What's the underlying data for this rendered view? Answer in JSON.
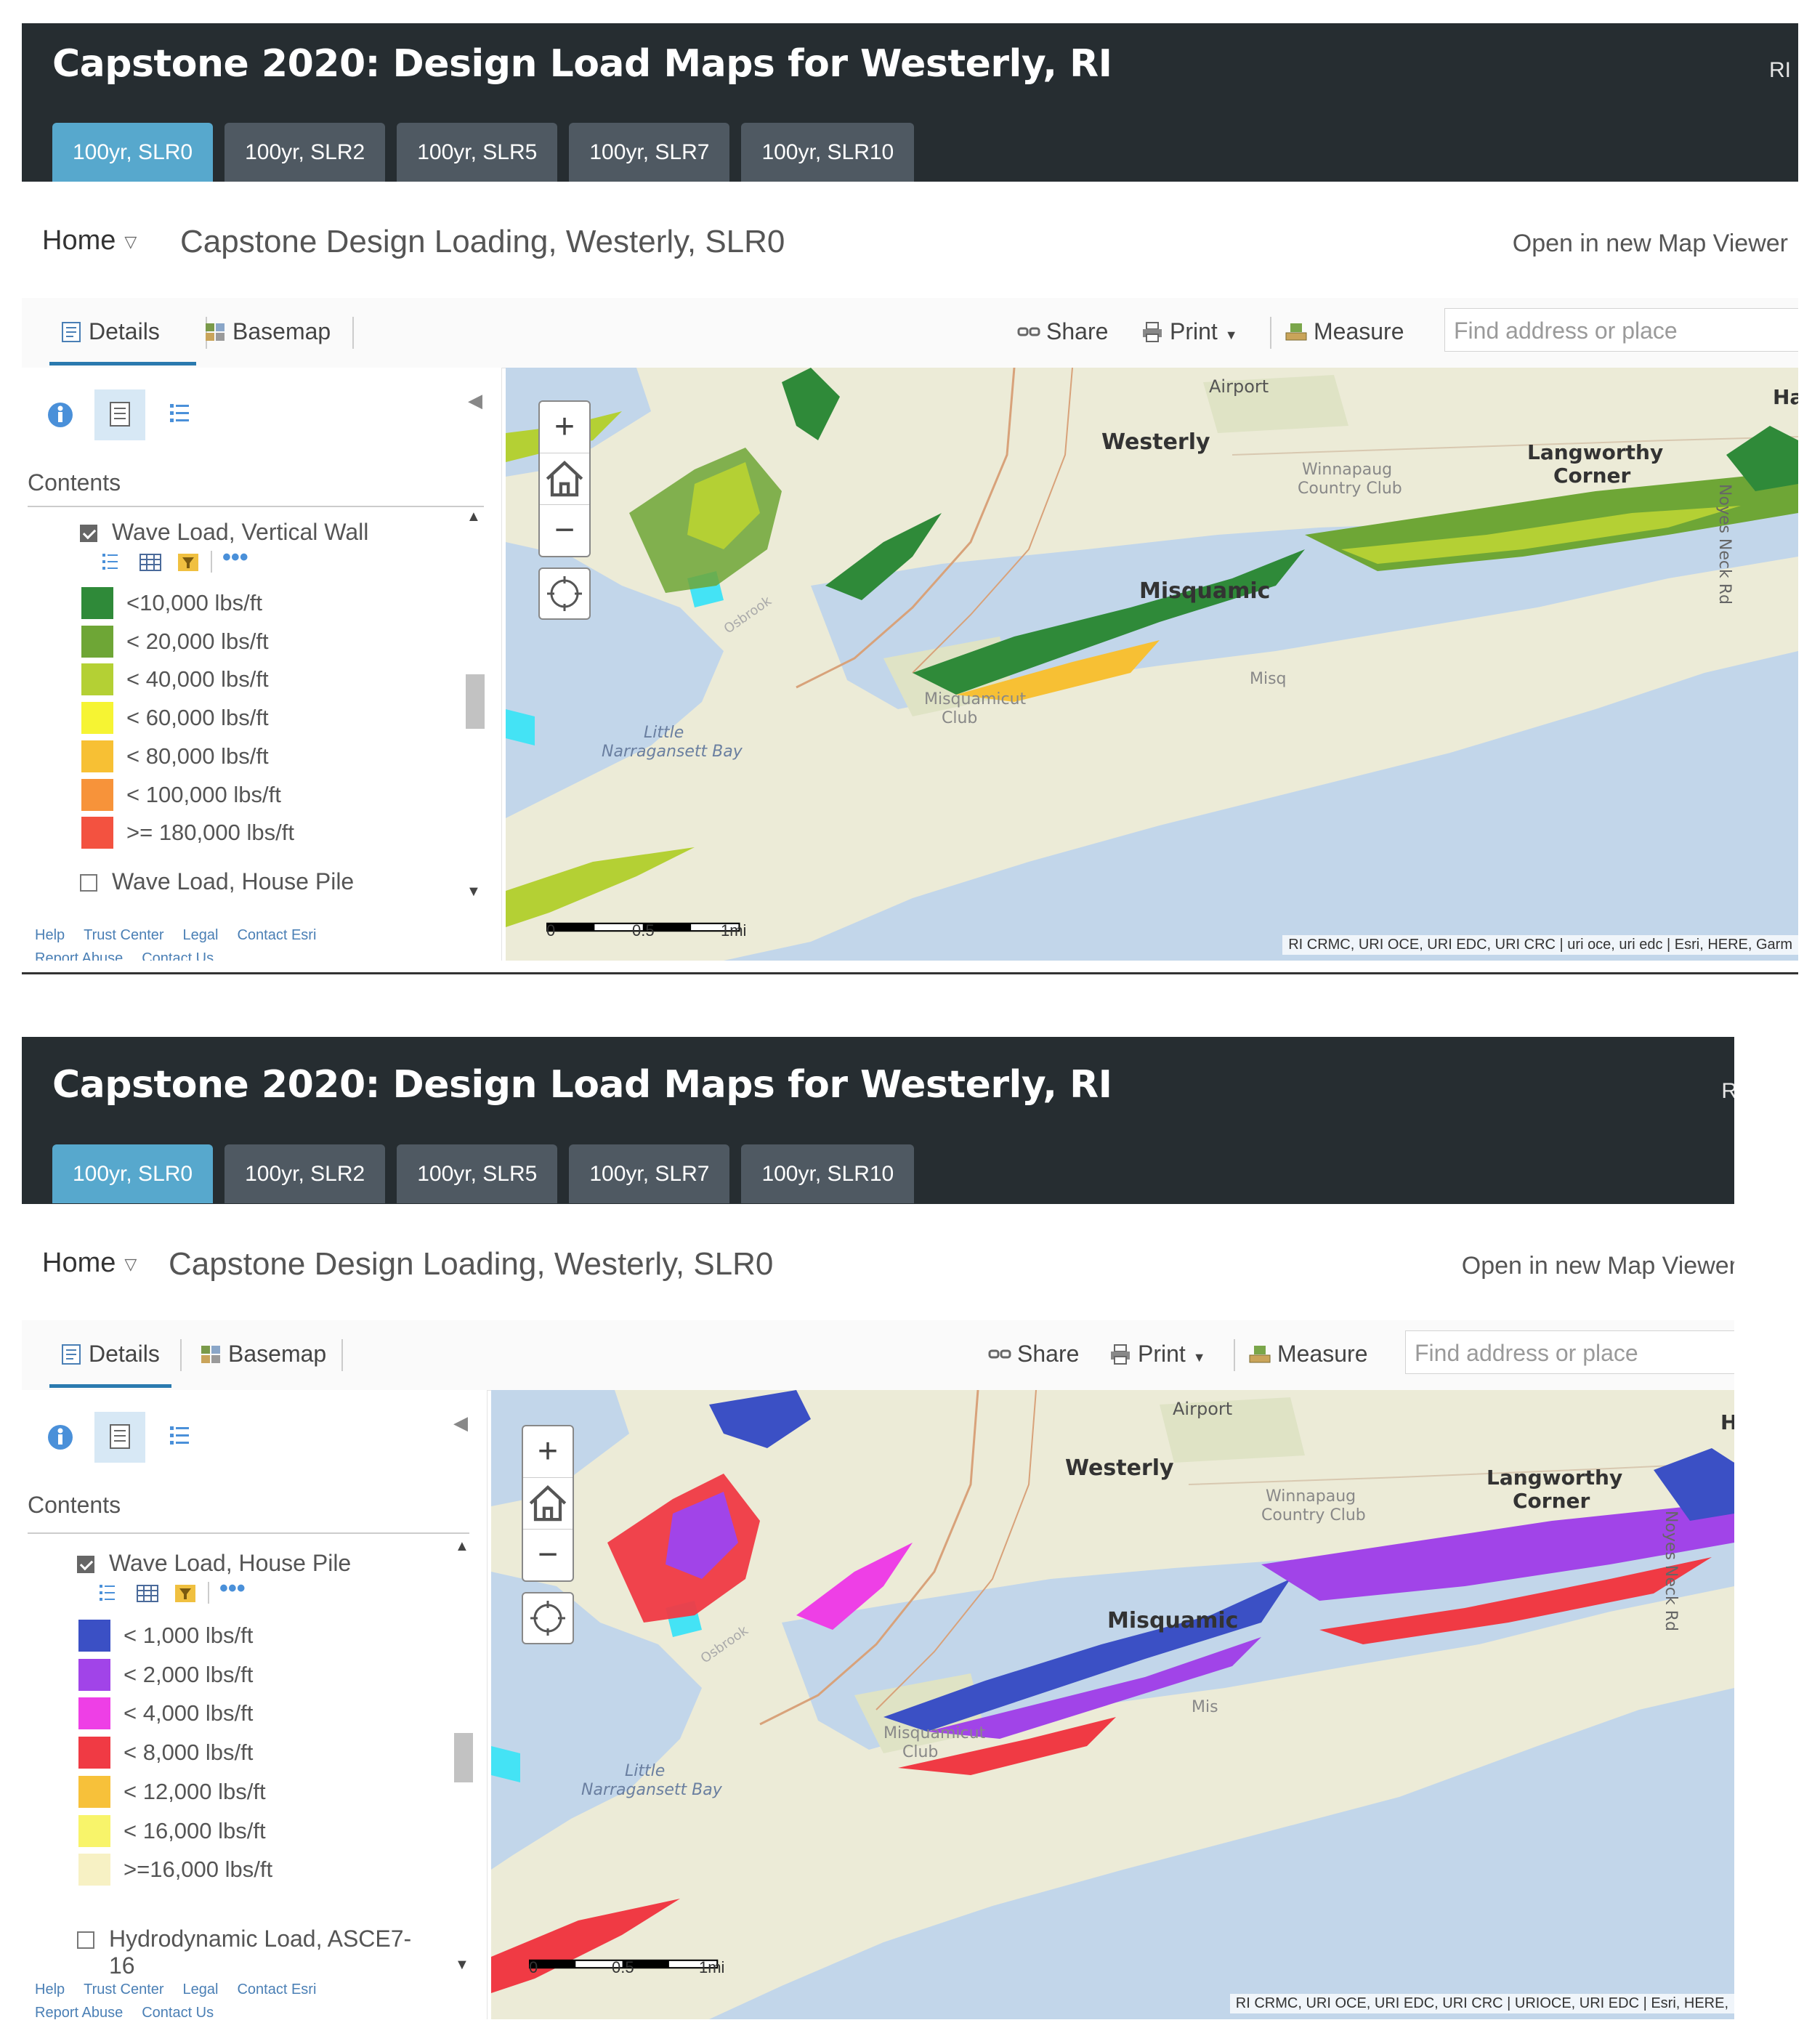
{
  "panels": [
    {
      "header": {
        "title": "Capstone 2020: Design Load Maps for Westerly, RI",
        "right_text": "RI"
      },
      "tabs": [
        {
          "label": "100yr, SLR0",
          "active": true
        },
        {
          "label": "100yr, SLR2",
          "active": false
        },
        {
          "label": "100yr, SLR5",
          "active": false
        },
        {
          "label": "100yr, SLR7",
          "active": false
        },
        {
          "label": "100yr, SLR10",
          "active": false
        }
      ],
      "titlebar": {
        "home": "Home",
        "map_title": "Capstone Design Loading, Westerly, SLR0",
        "open_link": "Open in new Map Viewer"
      },
      "toolbar": {
        "details": "Details",
        "basemap": "Basemap",
        "share": "Share",
        "print": "Print",
        "measure": "Measure",
        "search_placeholder": "Find address or place"
      },
      "sidebar": {
        "contents_label": "Contents",
        "layers": [
          {
            "name": "Wave Load, Vertical Wall",
            "checked": true
          },
          {
            "name": "Wave Load, House Pile",
            "checked": false
          }
        ],
        "legend": [
          {
            "label": "<10,000 lbs/ft",
            "color": "#2f8a39"
          },
          {
            "label": "< 20,000 lbs/ft",
            "color": "#6ea636"
          },
          {
            "label": "< 40,000 lbs/ft",
            "color": "#b4d034"
          },
          {
            "label": "< 60,000 lbs/ft",
            "color": "#f6f433"
          },
          {
            "label": "< 80,000 lbs/ft",
            "color": "#f7c034"
          },
          {
            "label": "< 100,000 lbs/ft",
            "color": "#f7933a"
          },
          {
            "label": ">= 180,000 lbs/ft",
            "color": "#f35240"
          }
        ],
        "footer": [
          "Help",
          "Trust Center",
          "Legal",
          "Contact Esri",
          "Report Abuse",
          "Contact Us"
        ]
      },
      "map": {
        "labels": {
          "airport": "Airport",
          "westerly": "Westerly",
          "langworthy": "Langworthy",
          "corner": "Corner",
          "winnapaug": "Winnapaug",
          "country_club": "Country Club",
          "misquamicut": "Misquamic",
          "misquamicut_club": "Misquamicut",
          "club": "Club",
          "little": "Little",
          "narragansett": "Narragansett Bay",
          "noyes": "Noyes Neck Rd",
          "ha": "Ha",
          "osbrook": "Osbrook",
          "misq_short": "Misq"
        },
        "scale": {
          "zero": "0",
          "half": "0.5",
          "one": "1mi"
        },
        "attribution": "RI CRMC, URI OCE, URI EDC, URI CRC | uri oce, uri edc | Esri, HERE, Garm",
        "overlay_colors": [
          "#2f8a39",
          "#6ea636",
          "#b4d034",
          "#f6f433",
          "#f7c034"
        ]
      }
    },
    {
      "header": {
        "title": "Capstone 2020: Design Load Maps for Westerly, RI",
        "right_text": "R"
      },
      "tabs": [
        {
          "label": "100yr, SLR0",
          "active": true
        },
        {
          "label": "100yr, SLR2",
          "active": false
        },
        {
          "label": "100yr, SLR5",
          "active": false
        },
        {
          "label": "100yr, SLR7",
          "active": false
        },
        {
          "label": "100yr, SLR10",
          "active": false
        }
      ],
      "titlebar": {
        "home": "Home",
        "map_title": "Capstone Design Loading, Westerly, SLR0",
        "open_link": "Open in new Map Viewer"
      },
      "toolbar": {
        "details": "Details",
        "basemap": "Basemap",
        "share": "Share",
        "print": "Print",
        "measure": "Measure",
        "search_placeholder": "Find address or place"
      },
      "sidebar": {
        "contents_label": "Contents",
        "layers": [
          {
            "name": "Wave Load, House Pile",
            "checked": true
          },
          {
            "name": "Hydrodynamic Load, ASCE7-",
            "name_line2": "16",
            "checked": false
          }
        ],
        "legend": [
          {
            "label": "< 1,000 lbs/ft",
            "color": "#3b50c5"
          },
          {
            "label": "< 2,000 lbs/ft",
            "color": "#a144e8"
          },
          {
            "label": "< 4,000 lbs/ft",
            "color": "#ee3fe6"
          },
          {
            "label": "< 8,000 lbs/ft",
            "color": "#f03a44"
          },
          {
            "label": "< 12,000 lbs/ft",
            "color": "#f7c13a"
          },
          {
            "label": "< 16,000 lbs/ft",
            "color": "#f8f46a"
          },
          {
            "label": ">=16,000 lbs/ft",
            "color": "#f7f1c4"
          }
        ],
        "footer": [
          "Help",
          "Trust Center",
          "Legal",
          "Contact Esri",
          "Report Abuse",
          "Contact Us"
        ]
      },
      "map": {
        "labels": {
          "airport": "Airport",
          "westerly": "Westerly",
          "langworthy": "Langworthy",
          "corner": "Corner",
          "winnapaug": "Winnapaug",
          "country_club": "Country Club",
          "misquamicut": "Misquamic",
          "misquamicut_club": "Misquamicut",
          "club": "Club",
          "little": "Little",
          "narragansett": "Narragansett Bay",
          "noyes": "Noyes Neck Rd",
          "ha": "H",
          "osbrook": "Osbrook",
          "misq_short": "Mis"
        },
        "scale": {
          "zero": "0",
          "half": "0.5",
          "one": "1mi"
        },
        "attribution": "RI CRMC, URI OCE, URI EDC, URI CRC | URIOCE, URI EDC | Esri, HERE,",
        "overlay_colors": [
          "#3b50c5",
          "#a144e8",
          "#ee3fe6",
          "#f03a44",
          "#3b50c5"
        ]
      }
    }
  ]
}
